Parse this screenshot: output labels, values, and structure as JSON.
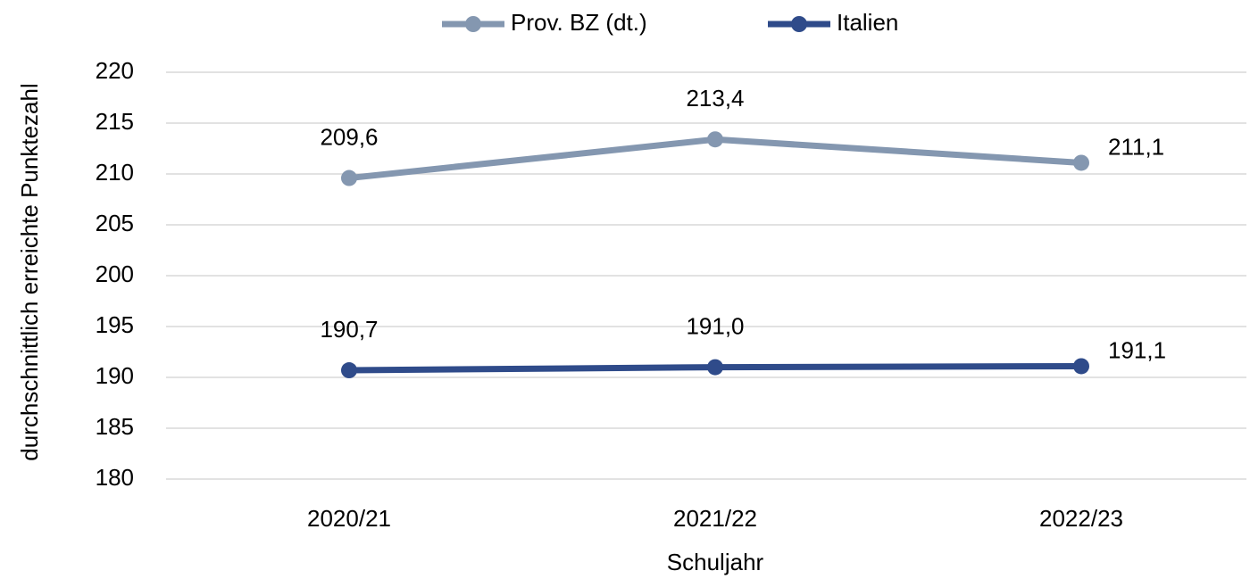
{
  "chart_data": {
    "type": "line",
    "x_label": "Schuljahr",
    "y_label": "durchschnittlich erreichte Punktezahl",
    "categories": [
      "2020/21",
      "2021/22",
      "2022/23"
    ],
    "series": [
      {
        "name": "Prov. BZ (dt.)",
        "color": "#8497b0",
        "values": [
          209.6,
          213.4,
          211.1
        ],
        "value_labels": [
          "209,6",
          "213,4",
          "211,1"
        ]
      },
      {
        "name": "Italien",
        "color": "#2f4b8a",
        "values": [
          190.7,
          191.0,
          191.1
        ],
        "value_labels": [
          "190,7",
          "191,0",
          "191,1"
        ]
      }
    ],
    "ylim": [
      180,
      220
    ],
    "yticks": [
      180,
      185,
      190,
      195,
      200,
      205,
      210,
      215,
      220
    ],
    "grid": true,
    "legend": "top"
  }
}
